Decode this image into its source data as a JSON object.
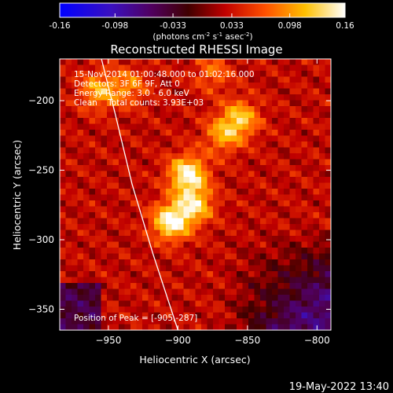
{
  "chart_data": {
    "type": "heatmap",
    "title": "Reconstructed RHESSI Image",
    "xlabel": "Heliocentric X (arcsec)",
    "ylabel": "Heliocentric Y (arcsec)",
    "xlim": [
      -985,
      -790
    ],
    "ylim": [
      -365,
      -170
    ],
    "xticks": [
      -950,
      -900,
      -850,
      -800
    ],
    "yticks": [
      -200,
      -250,
      -300,
      -350
    ],
    "colorbar": {
      "min": -0.16,
      "max": 0.16,
      "ticks": [
        "-0.16",
        "-0.098",
        "-0.033",
        "0.033",
        "0.098",
        "0.16"
      ],
      "unit_label": "(photons cm",
      "unit_sup1": "-2",
      "unit_mid1": " s",
      "unit_sup2": "-1",
      "unit_mid2": " asec",
      "unit_sup3": "-2",
      "unit_end": ")"
    },
    "annotations": [
      "15-Nov-2014 01:00:48.000 to 01:02:16.000",
      "Detectors: 3F 6F 9F, Att 0",
      "Energy Range: 3.0 - 6.0 keV",
      "Clean    Total counts: 3.93E+03"
    ],
    "peak_label": "Position of Peak = [-905,-287]",
    "peak": [
      -905,
      -287
    ],
    "sources": [
      {
        "x": -893,
        "y": -253,
        "value": 0.16
      },
      {
        "x": -905,
        "y": -287,
        "value": 0.16
      },
      {
        "x": -888,
        "y": -275,
        "value": 0.13
      },
      {
        "x": -855,
        "y": -213,
        "value": 0.12
      },
      {
        "x": -868,
        "y": -225,
        "value": 0.1
      },
      {
        "x": -957,
        "y": -193,
        "value": 0.11
      },
      {
        "x": -935,
        "y": -190,
        "value": 0.09
      },
      {
        "x": -875,
        "y": -180,
        "value": 0.08
      }
    ],
    "limb_curve": [
      [
        -955,
        -170
      ],
      [
        -945,
        -210
      ],
      [
        -933,
        -260
      ],
      [
        -918,
        -310
      ],
      [
        -900,
        -365
      ]
    ],
    "timestamp": "19-May-2022 13:40"
  }
}
